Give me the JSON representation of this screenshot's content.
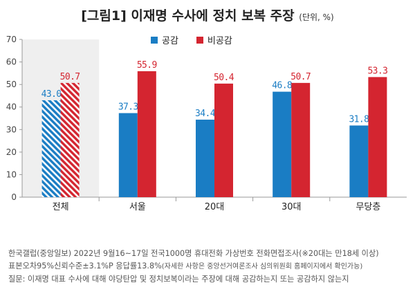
{
  "header": {
    "title": "[그림1] 이재명 수사에 정치 보복 주장",
    "unit": "(단위, %)"
  },
  "legend": [
    {
      "label": "공감",
      "color": "#1a7dc4"
    },
    {
      "label": "비공감",
      "color": "#d42530"
    }
  ],
  "chart_data": {
    "type": "bar",
    "title": "[그림1] 이재명 수사에 정치 보복 주장",
    "categories": [
      "전체",
      "서울",
      "20대",
      "30대",
      "무당층"
    ],
    "series": [
      {
        "name": "공감",
        "values": [
          43.0,
          37.3,
          34.4,
          46.8,
          31.8
        ],
        "color": "#1a7dc4"
      },
      {
        "name": "비공감",
        "values": [
          50.7,
          55.9,
          50.4,
          50.7,
          53.3
        ],
        "color": "#d42530"
      }
    ],
    "value_labels": [
      [
        "43.0",
        "37.3",
        "34.4",
        "46.8",
        "31.8"
      ],
      [
        "50.7",
        "55.9",
        "50.4",
        "50.7",
        "53.3"
      ]
    ],
    "ylim": [
      0,
      70
    ],
    "yticks": [
      0,
      10,
      20,
      30,
      40,
      50,
      60,
      70
    ],
    "highlighted_category": "전체",
    "grid": false,
    "legend_position": "top"
  },
  "notes": [
    "한국갤럽(중앙일보) 2022년 9월16~17일 전국1000명 휴대전화 가상번호 전화면접조사(※20대는 만18세 이상)",
    "표본오차95%신뢰수준±3.1%P 응답률13.8%",
    "(자세한 사항은 중앙선거여론조사 심의위원회 홈페이지에서 확인가능)",
    "질문: 이재명 대표 수사에 대해 야당탄압 및 정치보복이라는 주장에 대해 공감하는지 또는 공감하지 않는지"
  ]
}
